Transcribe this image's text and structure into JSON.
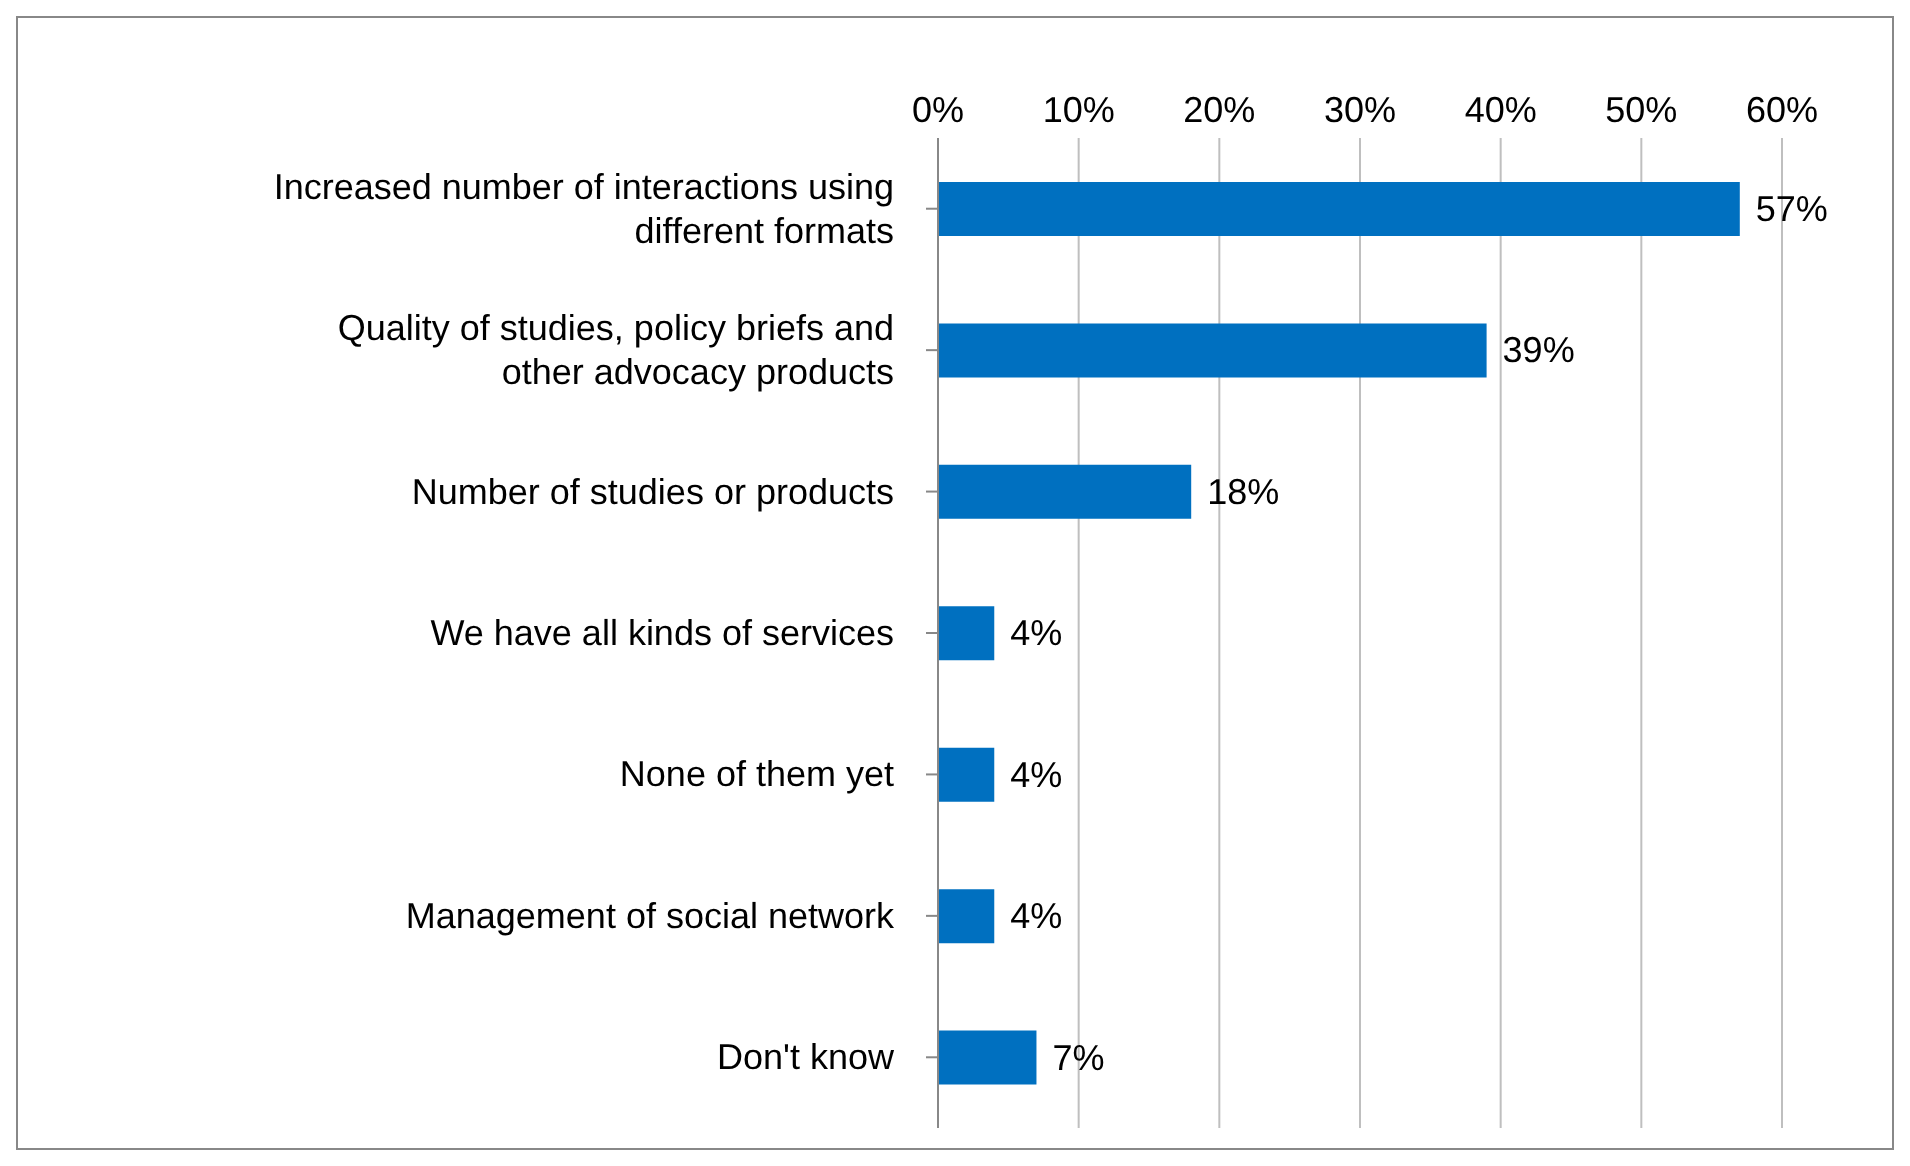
{
  "chart_data": {
    "type": "bar",
    "orientation": "horizontal",
    "categories": [
      "Increased number of interactions using different formats",
      "Quality of studies, policy briefs and other advocacy products",
      "Number of studies or products",
      "We have all kinds of services",
      "None of them yet",
      "Management of social network",
      "Don't know"
    ],
    "values": [
      57,
      39,
      18,
      4,
      4,
      4,
      7
    ],
    "value_labels": [
      "57%",
      "39%",
      "18%",
      "4%",
      "4%",
      "4%",
      "7%"
    ],
    "color": "#0070c0",
    "xlim": [
      0,
      60
    ],
    "xticks": [
      {
        "value": 0,
        "label": "0%"
      },
      {
        "value": 10,
        "label": "10%"
      },
      {
        "value": 20,
        "label": "20%"
      },
      {
        "value": 30,
        "label": "30%"
      },
      {
        "value": 40,
        "label": "40%"
      },
      {
        "value": 50,
        "label": "50%"
      },
      {
        "value": 60,
        "label": "60%"
      }
    ],
    "grid": "x"
  }
}
